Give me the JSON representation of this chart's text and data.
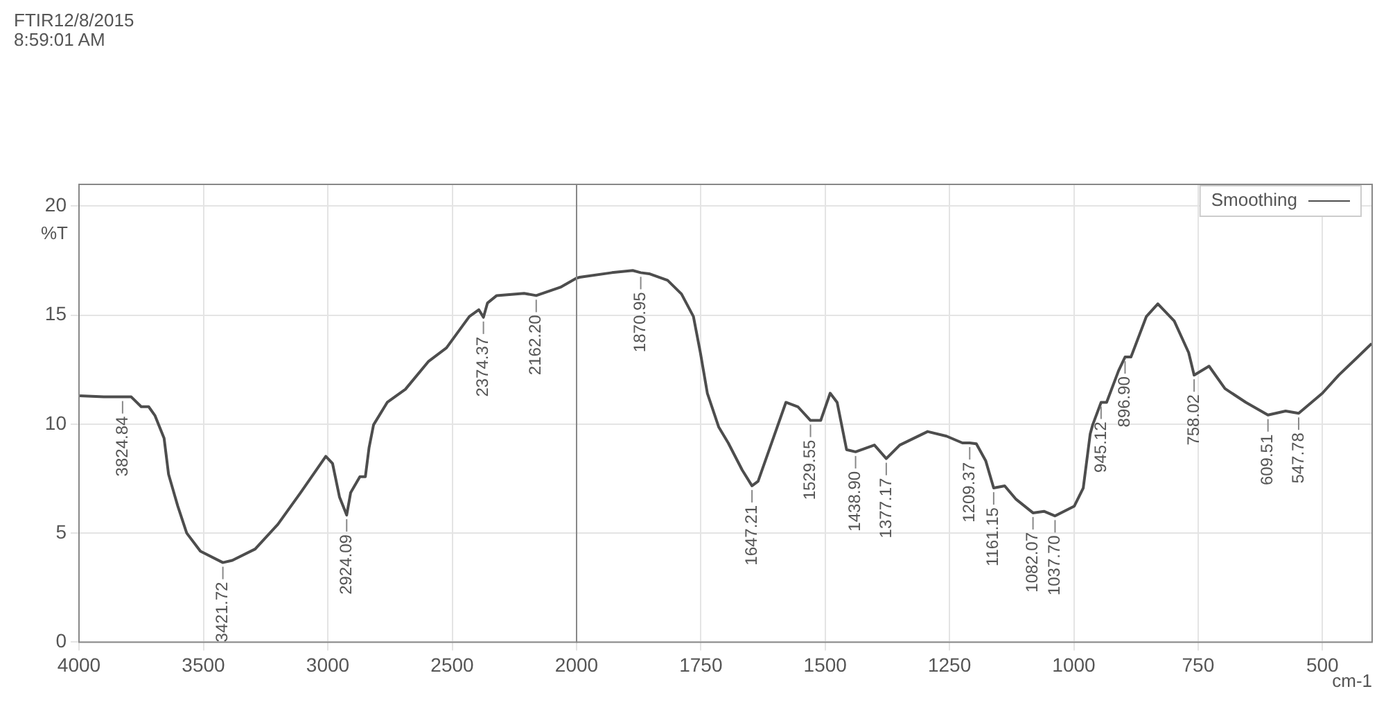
{
  "chart_data": [
    {
      "type": "line",
      "title": "FTIR12/8/2015",
      "subtitle": "8:59:01 AM",
      "ylabel": "%T",
      "x": [
        3997,
        3900,
        3824.84,
        3790,
        3750,
        3720,
        3695,
        3658,
        3640,
        3603,
        3567,
        3512,
        3421.72,
        3384,
        3292,
        3201,
        3109,
        3008,
        2981,
        2953,
        2924.09,
        2908,
        2871,
        2849,
        2834,
        2816,
        2761,
        2688,
        2596,
        2523,
        2431,
        2393,
        2374.37,
        2358,
        2321,
        2211,
        2162.2,
        2065,
        2000
      ],
      "series": [
        {
          "color": "#4d4d4d",
          "values": [
            11.3,
            11.25,
            11.25,
            11.25,
            10.8,
            10.8,
            10.4,
            9.35,
            7.7,
            6.24,
            5.0,
            4.17,
            3.65,
            3.75,
            4.27,
            5.4,
            6.86,
            8.52,
            8.2,
            6.66,
            5.83,
            6.86,
            7.59,
            7.59,
            8.93,
            9.97,
            11.0,
            11.6,
            12.87,
            13.5,
            14.94,
            15.25,
            14.9,
            15.56,
            15.9,
            16.0,
            15.9,
            16.28,
            16.7
          ]
        }
      ],
      "xlim": [
        4000,
        2000
      ],
      "xticks": [
        4000,
        3500,
        3000,
        2500,
        2000
      ],
      "ylim": [
        0,
        21
      ],
      "yticks": [
        0,
        5,
        10,
        15,
        20
      ],
      "grid": true,
      "annotations": [
        {
          "text": "3824.84",
          "x": 3824.84,
          "y": 11.25
        },
        {
          "text": "3421.72",
          "x": 3421.72,
          "y": 3.65
        },
        {
          "text": "2924.09",
          "x": 2924.09,
          "y": 5.83
        },
        {
          "text": "2374.37",
          "x": 2374.37,
          "y": 14.9
        },
        {
          "text": "2162.20",
          "x": 2162.2,
          "y": 15.9
        }
      ]
    },
    {
      "type": "line",
      "xlabel": "cm-1",
      "x": [
        2000,
        1994,
        1929,
        1887,
        1870.95,
        1854,
        1817,
        1789,
        1765,
        1751,
        1737,
        1714,
        1695,
        1667,
        1647.21,
        1635,
        1611,
        1579,
        1555,
        1529.55,
        1509,
        1490,
        1476,
        1457,
        1438.9,
        1401,
        1377.17,
        1350,
        1322,
        1294,
        1256,
        1224,
        1209.37,
        1196,
        1177,
        1161.15,
        1139,
        1116,
        1082.07,
        1060,
        1037.7,
        999,
        981,
        967,
        962,
        945.12,
        934,
        910,
        896.9,
        885,
        854,
        831,
        798,
        769,
        758.02,
        728,
        696,
        654,
        609.51,
        574,
        547.78,
        500,
        467,
        434,
        401
      ],
      "series": [
        {
          "name": "Smoothing",
          "color": "#4d4d4d",
          "values": [
            16.7,
            16.74,
            16.95,
            17.05,
            16.95,
            16.9,
            16.6,
            15.97,
            14.94,
            13.28,
            11.42,
            9.86,
            9.14,
            7.9,
            7.17,
            7.38,
            8.93,
            11.0,
            10.8,
            10.17,
            10.17,
            11.42,
            11.0,
            8.83,
            8.73,
            9.04,
            8.42,
            9.04,
            9.35,
            9.66,
            9.45,
            9.14,
            9.14,
            9.1,
            8.31,
            7.07,
            7.17,
            6.55,
            5.93,
            6.0,
            5.79,
            6.24,
            7.07,
            9.55,
            9.97,
            11.0,
            11.0,
            12.45,
            13.08,
            13.08,
            14.94,
            15.52,
            14.73,
            13.28,
            12.25,
            12.66,
            11.63,
            11.0,
            10.42,
            10.6,
            10.5,
            11.42,
            12.25,
            12.97,
            13.7
          ]
        }
      ],
      "xlim": [
        2000,
        400
      ],
      "xticks": [
        1750,
        1500,
        1250,
        1000,
        750,
        500
      ],
      "ylim": [
        0,
        21
      ],
      "yticks": [
        0,
        5,
        10,
        15,
        20
      ],
      "grid": true,
      "legend": "top right",
      "tick_labels": "x",
      "annotations": [
        {
          "text": "1870.95",
          "x": 1870.95,
          "y": 16.95
        },
        {
          "text": "1647.21",
          "x": 1647.21,
          "y": 7.17
        },
        {
          "text": "1529.55",
          "x": 1529.55,
          "y": 10.17
        },
        {
          "text": "1438.90",
          "x": 1438.9,
          "y": 8.73
        },
        {
          "text": "1377.17",
          "x": 1377.17,
          "y": 8.42
        },
        {
          "text": "1209.37",
          "x": 1209.37,
          "y": 9.14
        },
        {
          "text": "1161.15",
          "x": 1161.15,
          "y": 7.07
        },
        {
          "text": "1082.07",
          "x": 1082.07,
          "y": 5.93
        },
        {
          "text": "1037.70",
          "x": 1037.7,
          "y": 5.79
        },
        {
          "text": "945.12",
          "x": 945.12,
          "y": 11.0
        },
        {
          "text": "896.90",
          "x": 896.9,
          "y": 13.08
        },
        {
          "text": "758.02",
          "x": 758.02,
          "y": 12.25
        },
        {
          "text": "609.51",
          "x": 609.51,
          "y": 10.42
        },
        {
          "text": "547.78",
          "x": 547.78,
          "y": 10.5
        }
      ]
    }
  ]
}
